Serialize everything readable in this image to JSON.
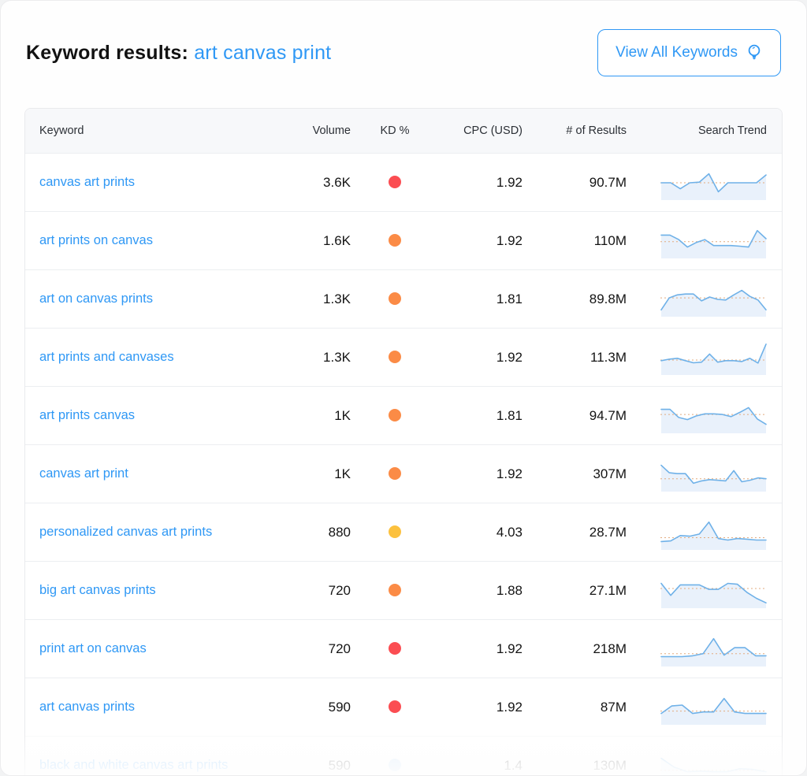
{
  "page": {
    "title_label": "Keyword results:",
    "title_query": "art canvas print",
    "view_all_button": "View All Keywords"
  },
  "colors": {
    "accent_blue": "#2f98f5",
    "kd_red": "#fb4d52",
    "kd_orange": "#fb8b46",
    "kd_yellow": "#fcc13e",
    "kd_faded_blue": "#aed3f2",
    "spark_line": "#6fb1e8",
    "spark_fill": "#e9f1fb",
    "spark_ref_line": "#e2ab7f"
  },
  "table": {
    "columns": [
      "Keyword",
      "Volume",
      "KD %",
      "CPC (USD)",
      "# of Results",
      "Search Trend"
    ],
    "rows": [
      {
        "keyword": "canvas art prints",
        "volume": "3.6K",
        "kd_color": "#fb4d52",
        "cpc": "1.92",
        "results": "90.7M",
        "faded": false,
        "trend": [
          50,
          50,
          30,
          50,
          52,
          80,
          20,
          50,
          50,
          50,
          50,
          76
        ],
        "ref": 50
      },
      {
        "keyword": "art prints on canvas",
        "volume": "1.6K",
        "kd_color": "#fb8b46",
        "cpc": "1.92",
        "results": "110M",
        "faded": false,
        "trend": [
          70,
          70,
          55,
          30,
          45,
          55,
          35,
          35,
          35,
          33,
          30,
          85,
          58
        ],
        "ref": 48
      },
      {
        "keyword": "art on canvas prints",
        "volume": "1.3K",
        "kd_color": "#fb8b46",
        "cpc": "1.81",
        "results": "89.8M",
        "faded": false,
        "trend": [
          15,
          55,
          65,
          68,
          68,
          45,
          58,
          50,
          48,
          65,
          80,
          60,
          48,
          15
        ],
        "ref": 55
      },
      {
        "keyword": "art prints and canvases",
        "volume": "1.3K",
        "kd_color": "#fb8b46",
        "cpc": "1.92",
        "results": "11.3M",
        "faded": false,
        "trend": [
          40,
          45,
          48,
          40,
          33,
          35,
          62,
          35,
          40,
          40,
          37,
          48,
          32,
          95
        ],
        "ref": 42
      },
      {
        "keyword": "art prints canvas",
        "volume": "1K",
        "kd_color": "#fb8b46",
        "cpc": "1.81",
        "results": "94.7M",
        "faded": false,
        "trend": [
          72,
          72,
          45,
          38,
          50,
          57,
          57,
          55,
          48,
          62,
          78,
          40,
          22
        ],
        "ref": 55
      },
      {
        "keyword": "canvas art print",
        "volume": "1K",
        "kd_color": "#fb8b46",
        "cpc": "1.92",
        "results": "307M",
        "faded": false,
        "trend": [
          80,
          55,
          52,
          52,
          20,
          28,
          32,
          30,
          28,
          62,
          25,
          30,
          38,
          35
        ],
        "ref": 35
      },
      {
        "keyword": "personalized canvas art prints",
        "volume": "880",
        "kd_color": "#fcc13e",
        "cpc": "4.03",
        "results": "28.7M",
        "faded": false,
        "trend": [
          20,
          22,
          40,
          38,
          45,
          85,
          30,
          25,
          30,
          28,
          25,
          25
        ],
        "ref": 33
      },
      {
        "keyword": "big art canvas prints",
        "volume": "720",
        "kd_color": "#fb8b46",
        "cpc": "1.88",
        "results": "27.1M",
        "faded": false,
        "trend": [
          75,
          35,
          70,
          70,
          70,
          55,
          55,
          75,
          72,
          45,
          25,
          10
        ],
        "ref": 58
      },
      {
        "keyword": "print art on canvas",
        "volume": "720",
        "kd_color": "#fb4d52",
        "cpc": "1.92",
        "results": "218M",
        "faded": false,
        "trend": [
          25,
          25,
          25,
          28,
          35,
          85,
          30,
          55,
          55,
          28,
          28
        ],
        "ref": 35
      },
      {
        "keyword": "art canvas prints",
        "volume": "590",
        "kd_color": "#fb4d52",
        "cpc": "1.92",
        "results": "87M",
        "faded": false,
        "trend": [
          30,
          55,
          58,
          30,
          35,
          35,
          80,
          35,
          30,
          30,
          30
        ],
        "ref": 38
      },
      {
        "keyword": "black and white canvas art prints",
        "volume": "590",
        "kd_color": "#aed3f2",
        "cpc": "1.4",
        "results": "130M",
        "faded": true,
        "trend": [
          75,
          45,
          30,
          32,
          30,
          30,
          40,
          38,
          30
        ],
        "ref": 35
      }
    ]
  }
}
